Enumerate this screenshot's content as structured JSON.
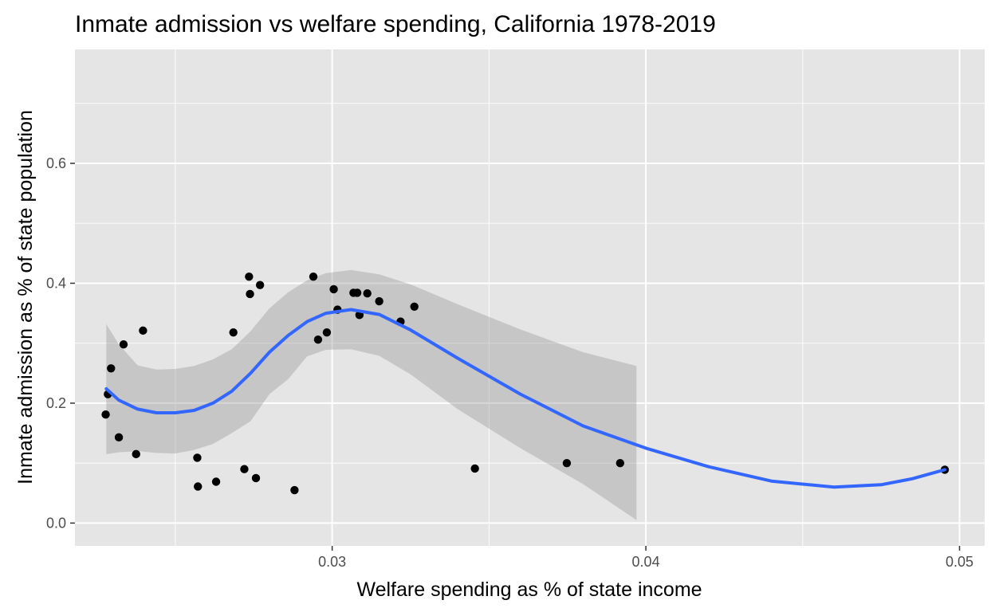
{
  "chart_data": {
    "type": "scatter",
    "title": "Inmate admission vs welfare spending, California 1978-2019",
    "xlabel": "Welfare spending as % of state income",
    "ylabel": "Inmate admission as % of state population",
    "xlim": [
      0.0218,
      0.0508
    ],
    "ylim": [
      -0.038,
      0.79
    ],
    "x_ticks": [
      {
        "value": 0.03,
        "label": "0.03"
      },
      {
        "value": 0.04,
        "label": "0.04"
      },
      {
        "value": 0.05,
        "label": "0.05"
      }
    ],
    "y_ticks": [
      {
        "value": 0.0,
        "label": "0.0"
      },
      {
        "value": 0.2,
        "label": "0.2"
      },
      {
        "value": 0.4,
        "label": "0.4"
      },
      {
        "value": 0.6,
        "label": "0.6"
      }
    ],
    "grid": true,
    "legend": "none",
    "points": [
      {
        "x": 0.02278,
        "y": 0.181
      },
      {
        "x": 0.02285,
        "y": 0.215
      },
      {
        "x": 0.02295,
        "y": 0.258
      },
      {
        "x": 0.0232,
        "y": 0.143
      },
      {
        "x": 0.02335,
        "y": 0.298
      },
      {
        "x": 0.02375,
        "y": 0.115
      },
      {
        "x": 0.02397,
        "y": 0.321
      },
      {
        "x": 0.0257,
        "y": 0.109
      },
      {
        "x": 0.02572,
        "y": 0.061
      },
      {
        "x": 0.0263,
        "y": 0.069
      },
      {
        "x": 0.02685,
        "y": 0.318
      },
      {
        "x": 0.0272,
        "y": 0.09
      },
      {
        "x": 0.02735,
        "y": 0.411
      },
      {
        "x": 0.02738,
        "y": 0.382
      },
      {
        "x": 0.02757,
        "y": 0.075
      },
      {
        "x": 0.0277,
        "y": 0.397
      },
      {
        "x": 0.0288,
        "y": 0.055
      },
      {
        "x": 0.0294,
        "y": 0.411
      },
      {
        "x": 0.02955,
        "y": 0.306
      },
      {
        "x": 0.02983,
        "y": 0.318
      },
      {
        "x": 0.03005,
        "y": 0.39
      },
      {
        "x": 0.03017,
        "y": 0.356
      },
      {
        "x": 0.03068,
        "y": 0.384
      },
      {
        "x": 0.0308,
        "y": 0.384
      },
      {
        "x": 0.03087,
        "y": 0.347
      },
      {
        "x": 0.03112,
        "y": 0.383
      },
      {
        "x": 0.0315,
        "y": 0.37
      },
      {
        "x": 0.03218,
        "y": 0.336
      },
      {
        "x": 0.03262,
        "y": 0.361
      },
      {
        "x": 0.03455,
        "y": 0.091
      },
      {
        "x": 0.03748,
        "y": 0.1
      },
      {
        "x": 0.03918,
        "y": 0.1
      },
      {
        "x": 0.04953,
        "y": 0.089
      }
    ],
    "smooth_line": [
      {
        "x": 0.0228,
        "y": 0.224
      },
      {
        "x": 0.0232,
        "y": 0.205
      },
      {
        "x": 0.0238,
        "y": 0.19
      },
      {
        "x": 0.0244,
        "y": 0.184
      },
      {
        "x": 0.025,
        "y": 0.184
      },
      {
        "x": 0.0256,
        "y": 0.188
      },
      {
        "x": 0.0262,
        "y": 0.2
      },
      {
        "x": 0.0268,
        "y": 0.22
      },
      {
        "x": 0.0274,
        "y": 0.25
      },
      {
        "x": 0.028,
        "y": 0.285
      },
      {
        "x": 0.0286,
        "y": 0.313
      },
      {
        "x": 0.0292,
        "y": 0.336
      },
      {
        "x": 0.0298,
        "y": 0.35
      },
      {
        "x": 0.0306,
        "y": 0.356
      },
      {
        "x": 0.0315,
        "y": 0.348
      },
      {
        "x": 0.0325,
        "y": 0.322
      },
      {
        "x": 0.034,
        "y": 0.275
      },
      {
        "x": 0.036,
        "y": 0.215
      },
      {
        "x": 0.038,
        "y": 0.162
      },
      {
        "x": 0.04,
        "y": 0.125
      },
      {
        "x": 0.042,
        "y": 0.094
      },
      {
        "x": 0.044,
        "y": 0.07
      },
      {
        "x": 0.046,
        "y": 0.06
      },
      {
        "x": 0.0475,
        "y": 0.064
      },
      {
        "x": 0.0485,
        "y": 0.074
      },
      {
        "x": 0.04953,
        "y": 0.089
      }
    ],
    "confidence_band": [
      {
        "x": 0.0228,
        "lower": 0.115,
        "upper": 0.332
      },
      {
        "x": 0.0232,
        "lower": 0.118,
        "upper": 0.298
      },
      {
        "x": 0.0238,
        "lower": 0.12,
        "upper": 0.263
      },
      {
        "x": 0.0244,
        "lower": 0.117,
        "upper": 0.256
      },
      {
        "x": 0.025,
        "lower": 0.116,
        "upper": 0.257
      },
      {
        "x": 0.0256,
        "lower": 0.122,
        "upper": 0.262
      },
      {
        "x": 0.0262,
        "lower": 0.132,
        "upper": 0.273
      },
      {
        "x": 0.0268,
        "lower": 0.15,
        "upper": 0.29
      },
      {
        "x": 0.0274,
        "lower": 0.17,
        "upper": 0.32
      },
      {
        "x": 0.028,
        "lower": 0.215,
        "upper": 0.358
      },
      {
        "x": 0.0286,
        "lower": 0.24,
        "upper": 0.385
      },
      {
        "x": 0.0292,
        "lower": 0.278,
        "upper": 0.405
      },
      {
        "x": 0.0298,
        "lower": 0.289,
        "upper": 0.417
      },
      {
        "x": 0.0306,
        "lower": 0.29,
        "upper": 0.422
      },
      {
        "x": 0.0315,
        "lower": 0.279,
        "upper": 0.415
      },
      {
        "x": 0.0325,
        "lower": 0.248,
        "upper": 0.398
      },
      {
        "x": 0.034,
        "lower": 0.19,
        "upper": 0.365
      },
      {
        "x": 0.036,
        "lower": 0.125,
        "upper": 0.323
      },
      {
        "x": 0.038,
        "lower": 0.065,
        "upper": 0.285
      },
      {
        "x": 0.0397,
        "lower": 0.005,
        "upper": 0.262
      }
    ],
    "colors": {
      "panel_background": "#e5e5e5",
      "grid": "#ffffff",
      "points": "#000000",
      "smooth_line": "#3366ff",
      "confidence_band": "#999999"
    }
  }
}
